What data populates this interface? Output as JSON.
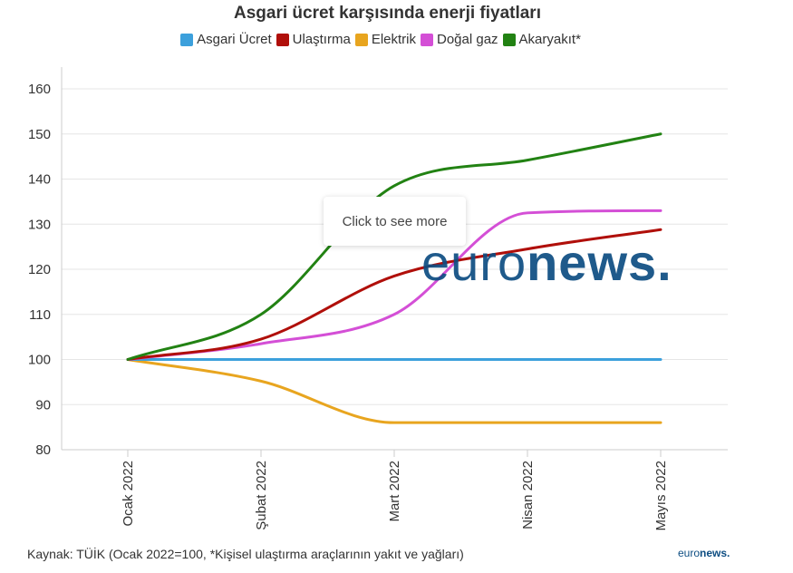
{
  "chart_data": {
    "type": "line",
    "title": "Asgari ücret karşısında enerji fiyatları",
    "categories": [
      "Ocak 2022",
      "Şubat 2022",
      "Mart 2022",
      "Nisan 2022",
      "Mayıs 2022"
    ],
    "ylim": [
      80,
      160
    ],
    "yticks": [
      80,
      90,
      100,
      110,
      120,
      130,
      140,
      150,
      160
    ],
    "grid": true,
    "legend_position": "top",
    "series": [
      {
        "name": "Asgari Ücret",
        "color": "#3ca0dc",
        "values": [
          100,
          100,
          100,
          100,
          100
        ]
      },
      {
        "name": "Ulaştırma",
        "color": "#b00f0a",
        "values": [
          100,
          104.5,
          118.5,
          124.5,
          128.8
        ]
      },
      {
        "name": "Elektrik",
        "color": "#e8a51f",
        "values": [
          100,
          95.2,
          86,
          86,
          86
        ]
      },
      {
        "name": "Doğal gaz",
        "color": "#d44fd6",
        "values": [
          100,
          103.5,
          110,
          132.5,
          133
        ]
      },
      {
        "name": "Akaryakıt*",
        "color": "#228213",
        "values": [
          100,
          110,
          138.5,
          144.2,
          150
        ]
      }
    ]
  },
  "tooltip": {
    "text": "Click to see more"
  },
  "watermark": {
    "light": "euro",
    "bold": "news."
  },
  "source": "Kaynak: TÜİK (Ocak 2022=100, *Kişisel ulaştırma araçlarının yakıt ve yağları)",
  "logo": {
    "light": "euro",
    "bold": "news."
  }
}
